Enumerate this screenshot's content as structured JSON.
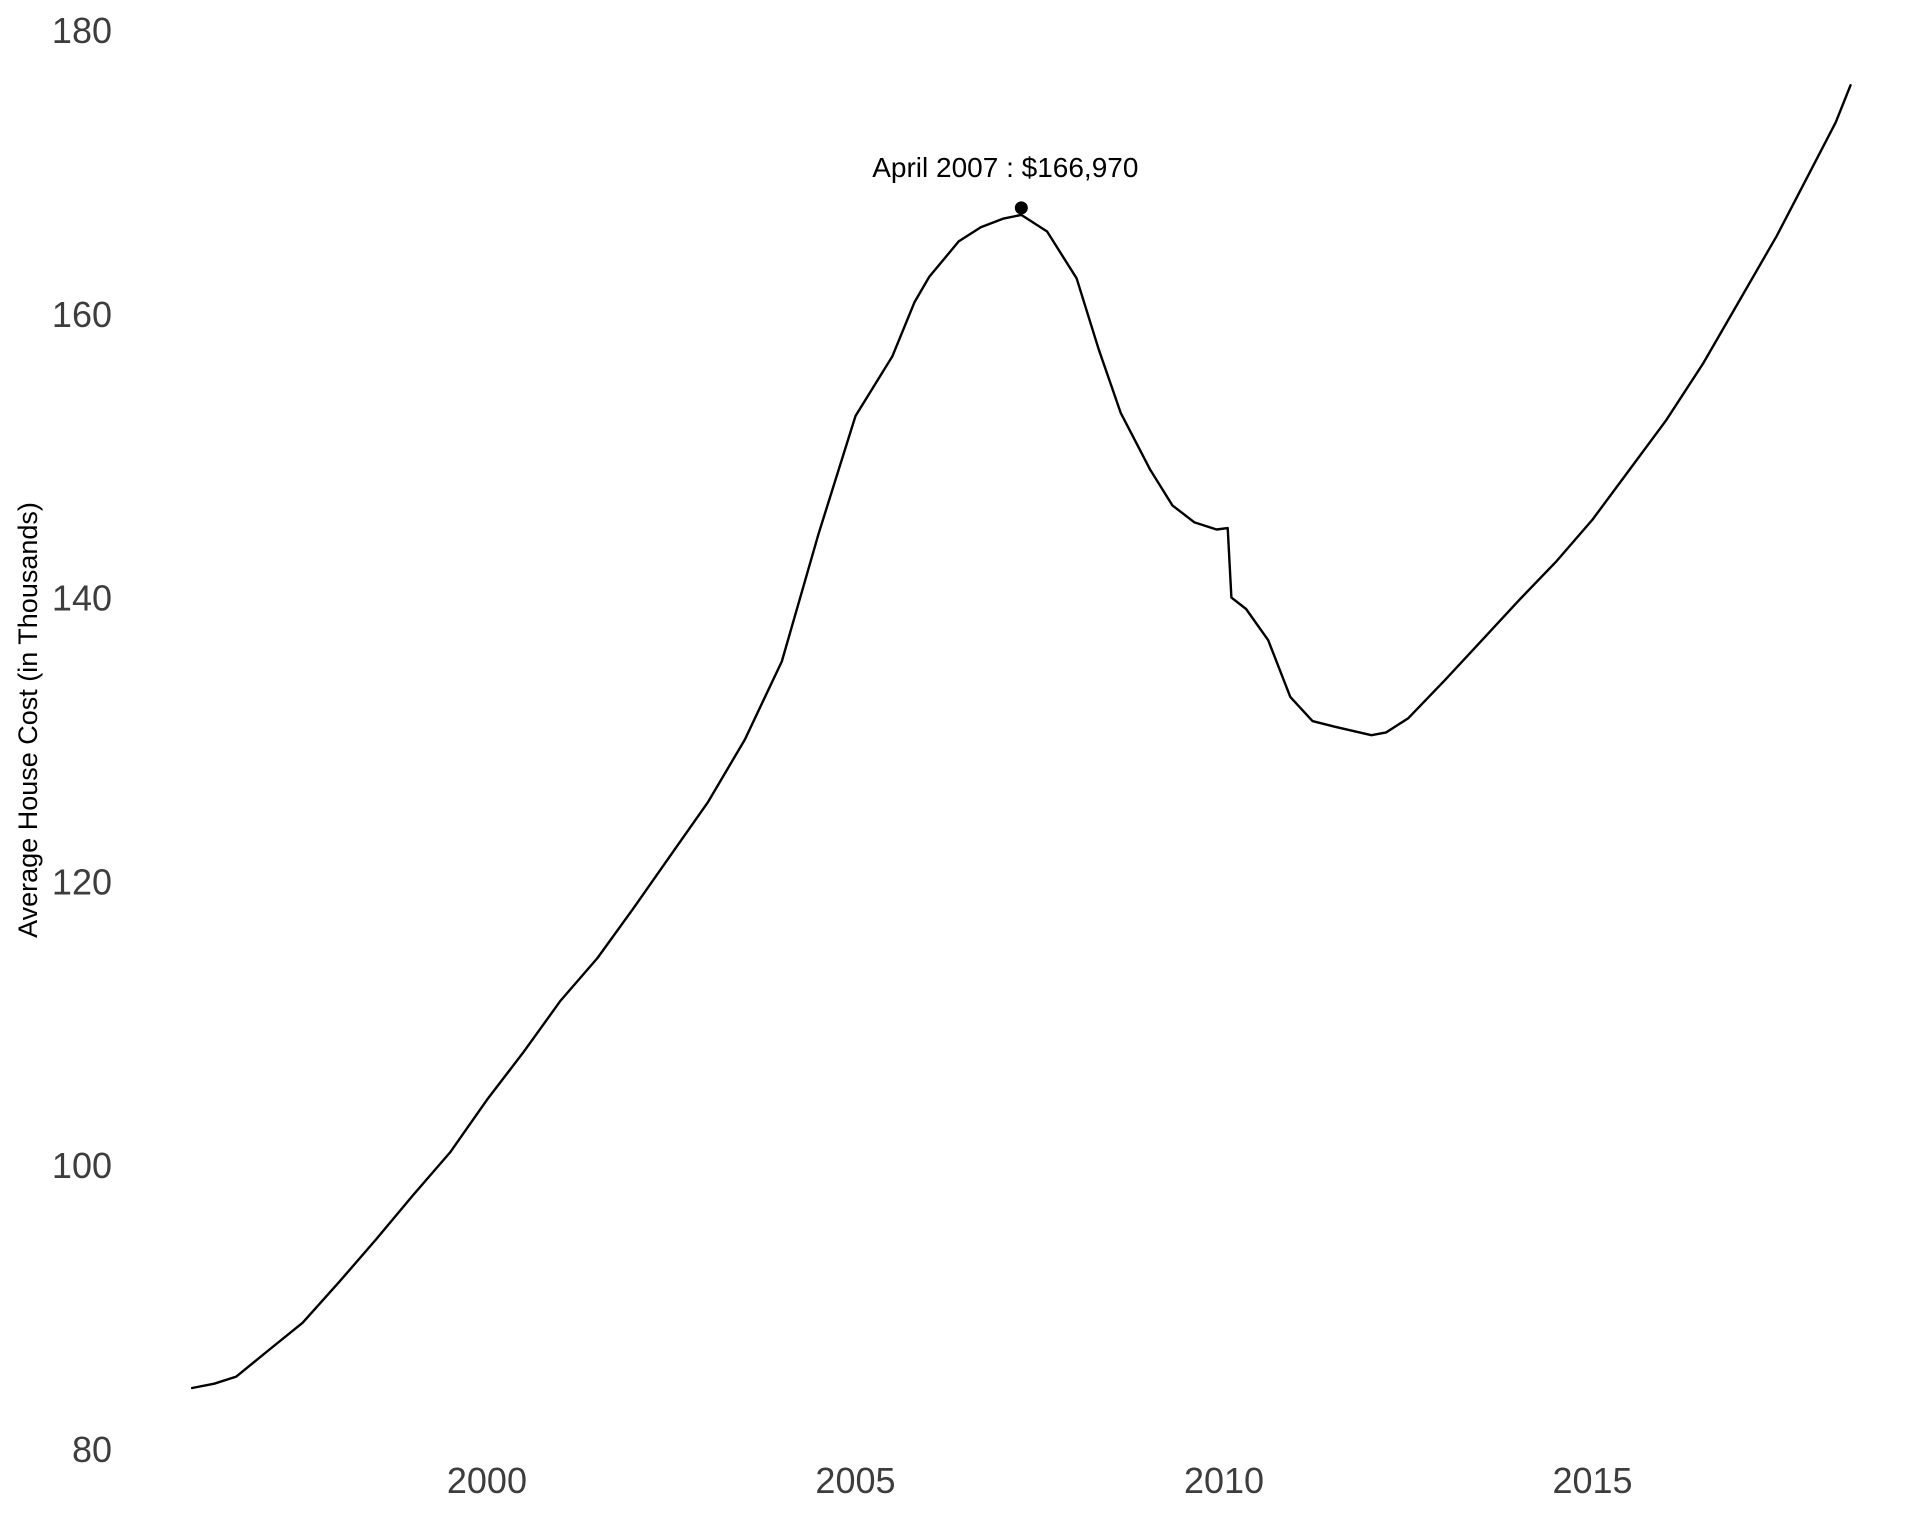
{
  "chart_data": {
    "type": "line",
    "title": "",
    "xlabel": "",
    "ylabel": "Average House Cost (in Thousands)",
    "xlim": [
      1995.7,
      2018.9
    ],
    "ylim": [
      80,
      180
    ],
    "xticks": [
      2000,
      2005,
      2010,
      2015
    ],
    "yticks": [
      80,
      100,
      120,
      140,
      160,
      180
    ],
    "grid": false,
    "line_color": "#000000",
    "series": [
      {
        "x": [
          1996.0,
          1996.3,
          1996.6,
          1997.0,
          1997.5,
          1998.0,
          1998.5,
          1999.0,
          1999.5,
          2000.0,
          2000.5,
          2001.0,
          2001.5,
          2002.0,
          2002.5,
          2003.0,
          2003.5,
          2004.0,
          2004.5,
          2005.0,
          2005.5,
          2005.8,
          2006.0,
          2006.4,
          2006.7,
          2007.0,
          2007.25,
          2007.6,
          2008.0,
          2008.3,
          2008.6,
          2009.0,
          2009.3,
          2009.6,
          2009.9,
          2010.05,
          2010.1,
          2010.3,
          2010.6,
          2010.9,
          2011.2,
          2011.5,
          2012.0,
          2012.2,
          2012.5,
          2013.0,
          2013.5,
          2014.0,
          2014.5,
          2015.0,
          2015.5,
          2016.0,
          2016.5,
          2017.0,
          2017.5,
          2018.0,
          2018.3,
          2018.5
        ],
        "y": [
          84.3,
          84.6,
          85.1,
          86.8,
          88.9,
          91.8,
          94.8,
          97.9,
          100.9,
          104.6,
          108.0,
          111.6,
          114.6,
          118.2,
          121.9,
          125.6,
          130.0,
          135.5,
          144.5,
          152.8,
          157.0,
          160.8,
          162.6,
          165.1,
          166.1,
          166.7,
          166.97,
          165.8,
          162.5,
          157.5,
          153.0,
          149.0,
          146.5,
          145.3,
          144.8,
          144.9,
          140.0,
          139.2,
          137.0,
          133.0,
          131.3,
          130.9,
          130.3,
          130.5,
          131.5,
          134.2,
          137.0,
          139.8,
          142.5,
          145.5,
          149.0,
          152.5,
          156.5,
          161.0,
          165.5,
          170.5,
          173.5,
          176.1
        ]
      }
    ],
    "annotations": [
      {
        "x": 2007.25,
        "y": 166.97,
        "text": "April 2007 : $166,970"
      }
    ]
  }
}
